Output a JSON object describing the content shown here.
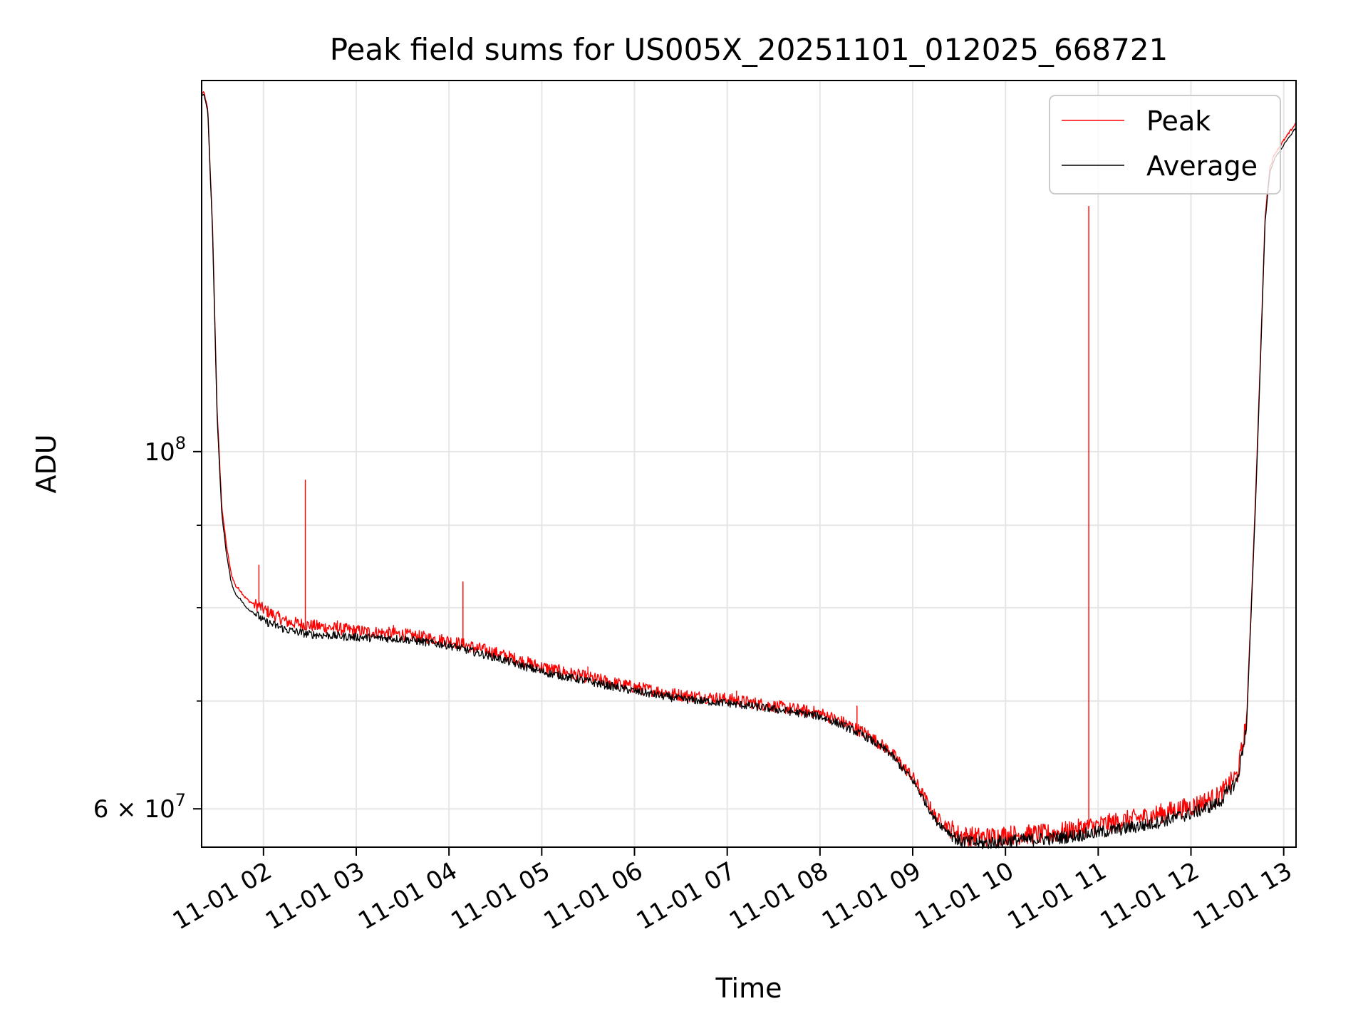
{
  "chart_data": {
    "type": "line",
    "title": "Peak field sums for US005X_20251101_012025_668721",
    "xlabel": "Time",
    "ylabel": "ADU",
    "yscale": "log",
    "xlim_hours": [
      1.333,
      13.133
    ],
    "ylim": [
      56800000,
      170000000
    ],
    "grid": true,
    "legend_position": "top-right",
    "x_ticks": [
      {
        "hour": 2,
        "label": "11-01 02"
      },
      {
        "hour": 3,
        "label": "11-01 03"
      },
      {
        "hour": 4,
        "label": "11-01 04"
      },
      {
        "hour": 5,
        "label": "11-01 05"
      },
      {
        "hour": 6,
        "label": "11-01 06"
      },
      {
        "hour": 7,
        "label": "11-01 07"
      },
      {
        "hour": 8,
        "label": "11-01 08"
      },
      {
        "hour": 9,
        "label": "11-01 09"
      },
      {
        "hour": 10,
        "label": "11-01 10"
      },
      {
        "hour": 11,
        "label": "11-01 11"
      },
      {
        "hour": 12,
        "label": "11-01 12"
      },
      {
        "hour": 13,
        "label": "11-01 13"
      }
    ],
    "y_major_ticks": [
      {
        "value": 100000000,
        "mantissa": "10",
        "exponent": "8"
      },
      {
        "value": 60000000,
        "mantissa": "6 × 10",
        "exponent": "7"
      }
    ],
    "y_minor_ticks": [
      70000000,
      80000000,
      90000000
    ],
    "series": [
      {
        "name": "Peak",
        "color": "#ff0000",
        "hours": [
          1.333,
          1.36,
          1.4,
          1.45,
          1.5,
          1.55,
          1.6,
          1.65,
          1.7,
          1.75,
          1.8,
          1.85,
          1.9,
          1.95,
          2.0,
          2.25,
          2.5,
          3.0,
          3.5,
          4.0,
          4.5,
          5.0,
          5.5,
          6.0,
          6.5,
          7.0,
          7.5,
          8.0,
          8.25,
          8.5,
          8.75,
          9.0,
          9.25,
          9.5,
          9.75,
          10.0,
          10.5,
          11.0,
          11.5,
          12.0,
          12.3,
          12.5,
          12.6,
          12.7,
          12.75,
          12.8,
          12.85,
          12.9,
          13.0,
          13.133
        ],
        "values": [
          167000000,
          167000000,
          163000000,
          138000000,
          106000000,
          92500000,
          87500000,
          84000000,
          82500000,
          82000000,
          81200000,
          80700000,
          80400000,
          80200000,
          79800000,
          78400000,
          78000000,
          77400000,
          77000000,
          76300000,
          75000000,
          73500000,
          72400000,
          71400000,
          70600000,
          70200000,
          69500000,
          68800000,
          67900000,
          66800000,
          65200000,
          62800000,
          59300000,
          57800000,
          57600000,
          57800000,
          57900000,
          58600000,
          59300000,
          60200000,
          61100000,
          63000000,
          68000000,
          95000000,
          115000000,
          140000000,
          150000000,
          153000000,
          156000000,
          160000000
        ],
        "spikes": [
          {
            "hour": 1.95,
            "value": 85000000
          },
          {
            "hour": 2.45,
            "value": 96000000
          },
          {
            "hour": 2.8,
            "value": 78500000
          },
          {
            "hour": 3.4,
            "value": 78000000
          },
          {
            "hour": 4.15,
            "value": 83000000
          },
          {
            "hour": 5.5,
            "value": 73500000
          },
          {
            "hour": 7.1,
            "value": 71000000
          },
          {
            "hour": 8.4,
            "value": 69500000
          },
          {
            "hour": 10.9,
            "value": 142000000
          }
        ]
      },
      {
        "name": "Average",
        "color": "#000000",
        "hours": [
          1.333,
          1.36,
          1.4,
          1.45,
          1.5,
          1.55,
          1.6,
          1.65,
          1.7,
          1.75,
          1.8,
          1.85,
          1.9,
          1.95,
          2.0,
          2.25,
          2.5,
          3.0,
          3.5,
          4.0,
          4.5,
          5.0,
          5.5,
          6.0,
          6.5,
          7.0,
          7.5,
          8.0,
          8.25,
          8.5,
          8.75,
          9.0,
          9.25,
          9.5,
          9.75,
          10.0,
          10.5,
          11.0,
          11.5,
          12.0,
          12.3,
          12.5,
          12.6,
          12.7,
          12.75,
          12.8,
          12.85,
          12.9,
          13.0,
          13.133
        ],
        "values": [
          166500000,
          166500000,
          162500000,
          137000000,
          105000000,
          91500000,
          86500000,
          83000000,
          81500000,
          81000000,
          80200000,
          79700000,
          79400000,
          79000000,
          78500000,
          77500000,
          77000000,
          76700000,
          76500000,
          75800000,
          74500000,
          73000000,
          72000000,
          71000000,
          70200000,
          69800000,
          69200000,
          68500000,
          67600000,
          66500000,
          65000000,
          62500000,
          59000000,
          57300000,
          57100000,
          57300000,
          57500000,
          58000000,
          58600000,
          59600000,
          60500000,
          62500000,
          67500000,
          94000000,
          114000000,
          139000000,
          149000000,
          152000000,
          155000000,
          159000000
        ]
      }
    ]
  }
}
